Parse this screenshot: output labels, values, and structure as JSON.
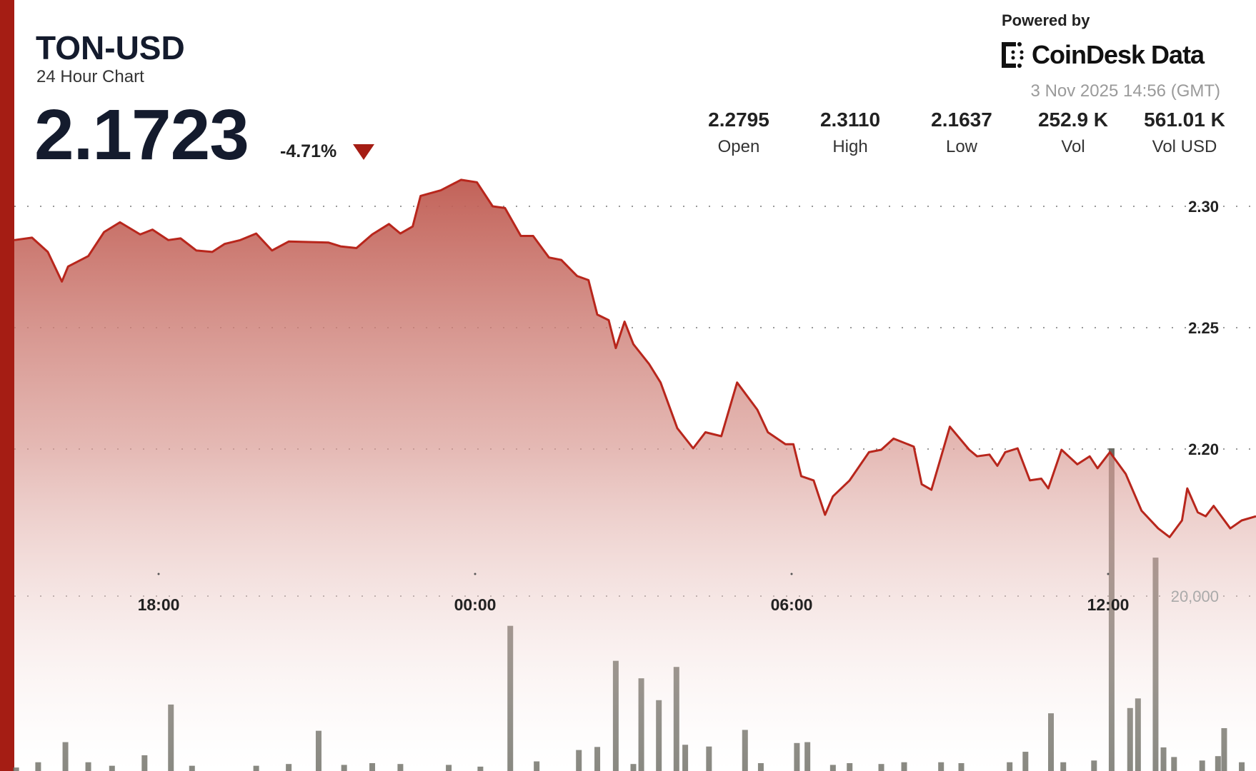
{
  "header": {
    "title": "TON-USD",
    "subtitle": "24 Hour Chart",
    "price": "2.1723",
    "change": "-4.71%",
    "change_direction_icon": "triangle-down",
    "powered_by": "Powered by",
    "brand": "CoinDesk Data",
    "timestamp": "3 Nov 2025 14:56 (GMT)"
  },
  "stats": [
    {
      "value": "2.2795",
      "label": "Open"
    },
    {
      "value": "2.3110",
      "label": "High"
    },
    {
      "value": "2.1637",
      "label": "Low"
    },
    {
      "value": "252.9 K",
      "label": "Vol"
    },
    {
      "value": "561.01 K",
      "label": "Vol USD"
    }
  ],
  "colors": {
    "accent": "#a51d14",
    "line": "#b8261c",
    "volume": "#6b6b62"
  },
  "chart_data": {
    "type": "area",
    "x_ticks": [
      "18:00",
      "00:00",
      "06:00",
      "12:00"
    ],
    "y_ticks": [
      "2.30",
      "2.25",
      "2.20"
    ],
    "y_tick_values": [
      2.3,
      2.25,
      2.2
    ],
    "ylim": [
      2.155,
      2.315
    ],
    "grid": true,
    "price_series": [
      [
        "15:16",
        2.2861
      ],
      [
        "15:36",
        2.2871
      ],
      [
        "15:54",
        2.2812
      ],
      [
        "16:10",
        2.269
      ],
      [
        "16:17",
        2.2752
      ],
      [
        "16:40",
        2.2795
      ],
      [
        "16:58",
        2.2894
      ],
      [
        "17:16",
        2.2934
      ],
      [
        "17:39",
        2.2884
      ],
      [
        "17:53",
        2.2904
      ],
      [
        "18:11",
        2.2861
      ],
      [
        "18:25",
        2.2868
      ],
      [
        "18:43",
        2.2818
      ],
      [
        "19:01",
        2.2812
      ],
      [
        "19:15",
        2.2845
      ],
      [
        "19:33",
        2.2861
      ],
      [
        "19:51",
        2.2888
      ],
      [
        "20:09",
        2.2818
      ],
      [
        "20:28",
        2.2855
      ],
      [
        "21:13",
        2.2851
      ],
      [
        "21:27",
        2.2835
      ],
      [
        "21:45",
        2.2828
      ],
      [
        "22:03",
        2.2884
      ],
      [
        "22:22",
        2.2927
      ],
      [
        "22:35",
        2.2888
      ],
      [
        "22:49",
        2.2917
      ],
      [
        "22:58",
        2.3043
      ],
      [
        "23:21",
        2.3066
      ],
      [
        "23:44",
        2.3109
      ],
      [
        "00:02",
        2.3099
      ],
      [
        "00:20",
        2.3
      ],
      [
        "00:34",
        2.2993
      ],
      [
        "00:52",
        2.2878
      ],
      [
        "01:06",
        2.2878
      ],
      [
        "01:24",
        2.2789
      ],
      [
        "01:38",
        2.2779
      ],
      [
        "01:56",
        2.2713
      ],
      [
        "02:09",
        2.2696
      ],
      [
        "02:19",
        2.2554
      ],
      [
        "02:32",
        2.2531
      ],
      [
        "02:40",
        2.2416
      ],
      [
        "02:50",
        2.2525
      ],
      [
        "03:00",
        2.2432
      ],
      [
        "03:18",
        2.235
      ],
      [
        "03:31",
        2.2274
      ],
      [
        "03:50",
        2.2086
      ],
      [
        "04:08",
        2.2003
      ],
      [
        "04:22",
        2.2069
      ],
      [
        "04:40",
        2.2053
      ],
      [
        "04:58",
        2.2274
      ],
      [
        "05:21",
        2.2162
      ],
      [
        "05:33",
        2.2069
      ],
      [
        "05:53",
        2.202
      ],
      [
        "06:02",
        2.202
      ],
      [
        "06:11",
        2.1888
      ],
      [
        "06:25",
        2.1871
      ],
      [
        "06:38",
        2.1729
      ],
      [
        "06:47",
        2.1805
      ],
      [
        "07:06",
        2.1871
      ],
      [
        "07:28",
        2.1987
      ],
      [
        "07:42",
        2.1997
      ],
      [
        "07:56",
        2.2043
      ],
      [
        "08:19",
        2.201
      ],
      [
        "08:28",
        2.1855
      ],
      [
        "08:39",
        2.1832
      ],
      [
        "09:00",
        2.2092
      ],
      [
        "09:22",
        2.1997
      ],
      [
        "09:31",
        2.197
      ],
      [
        "09:45",
        2.1977
      ],
      [
        "09:54",
        2.1931
      ],
      [
        "10:03",
        2.1987
      ],
      [
        "10:17",
        2.2003
      ],
      [
        "10:31",
        2.1871
      ],
      [
        "10:44",
        2.1878
      ],
      [
        "10:52",
        2.1838
      ],
      [
        "11:07",
        2.1997
      ],
      [
        "11:25",
        2.1937
      ],
      [
        "11:39",
        2.197
      ],
      [
        "11:48",
        2.1921
      ],
      [
        "12:02",
        2.1987
      ],
      [
        "12:20",
        2.1898
      ],
      [
        "12:38",
        2.1746
      ],
      [
        "12:57",
        2.1673
      ],
      [
        "13:10",
        2.1637
      ],
      [
        "13:24",
        2.1706
      ],
      [
        "13:30",
        2.1838
      ],
      [
        "13:42",
        2.1739
      ],
      [
        "13:51",
        2.1723
      ],
      [
        "14:00",
        2.1766
      ],
      [
        "14:19",
        2.1673
      ],
      [
        "14:32",
        2.1706
      ],
      [
        "14:49",
        2.1723
      ]
    ],
    "volume_tick": "20,000",
    "volume_tick_value": 20000,
    "volume_series": [
      [
        "15:18",
        400
      ],
      [
        "15:43",
        1000
      ],
      [
        "16:14",
        3300
      ],
      [
        "16:40",
        1000
      ],
      [
        "17:07",
        600
      ],
      [
        "17:44",
        1800
      ],
      [
        "18:14",
        7600
      ],
      [
        "18:38",
        600
      ],
      [
        "19:51",
        600
      ],
      [
        "20:28",
        800
      ],
      [
        "21:02",
        4600
      ],
      [
        "21:31",
        700
      ],
      [
        "22:03",
        900
      ],
      [
        "22:35",
        800
      ],
      [
        "23:30",
        700
      ],
      [
        "00:06",
        500
      ],
      [
        "00:40",
        16600
      ],
      [
        "01:10",
        1100
      ],
      [
        "01:58",
        2400
      ],
      [
        "02:19",
        2750
      ],
      [
        "02:40",
        12600
      ],
      [
        "03:00",
        800
      ],
      [
        "03:09",
        10600
      ],
      [
        "03:29",
        8100
      ],
      [
        "03:49",
        11900
      ],
      [
        "03:59",
        3000
      ],
      [
        "04:26",
        2800
      ],
      [
        "05:07",
        4700
      ],
      [
        "05:25",
        900
      ],
      [
        "06:06",
        3200
      ],
      [
        "06:18",
        3300
      ],
      [
        "06:47",
        700
      ],
      [
        "07:06",
        900
      ],
      [
        "07:42",
        800
      ],
      [
        "08:08",
        1000
      ],
      [
        "08:50",
        1000
      ],
      [
        "09:13",
        900
      ],
      [
        "10:08",
        1000
      ],
      [
        "10:26",
        2200
      ],
      [
        "10:55",
        6600
      ],
      [
        "11:09",
        1000
      ],
      [
        "11:44",
        1200
      ],
      [
        "12:04",
        36900
      ],
      [
        "12:25",
        7200
      ],
      [
        "12:34",
        8300
      ],
      [
        "12:54",
        24400
      ],
      [
        "13:03",
        2700
      ],
      [
        "13:15",
        1600
      ],
      [
        "13:47",
        1200
      ],
      [
        "14:05",
        1700
      ],
      [
        "14:12",
        4900
      ],
      [
        "14:32",
        1000
      ]
    ]
  }
}
